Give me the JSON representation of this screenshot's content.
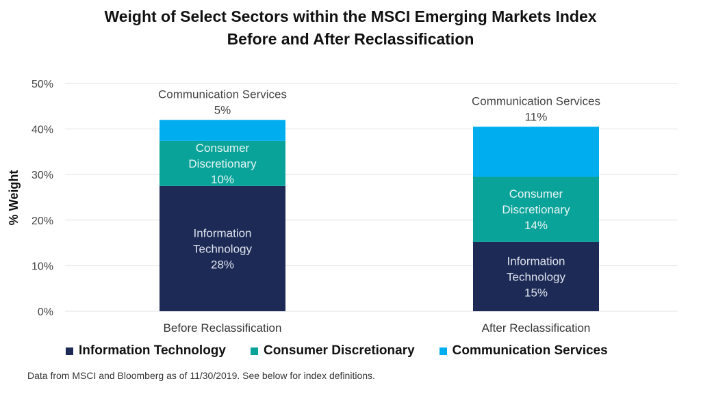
{
  "title_line1": "Weight of Select Sectors within the MSCI Emerging Markets Index",
  "title_line2": "Before and After Reclassification",
  "footer": "Data from MSCI and Bloomberg as of 11/30/2019. See below for index definitions.",
  "chart_data": {
    "type": "bar",
    "stacked": true,
    "ylabel": "% Weight",
    "ylim": [
      0,
      50
    ],
    "yticks": [
      "0%",
      "10%",
      "20%",
      "30%",
      "40%",
      "50%"
    ],
    "grid": true,
    "legend_position": "bottom",
    "categories": [
      "Before Reclassification",
      "After Reclassification"
    ],
    "series": [
      {
        "name": "Information Technology",
        "color": "#1c2a55",
        "text_color": "#dfe3ee",
        "values": [
          27.5,
          15.2
        ],
        "data_labels": [
          "28%",
          "15%"
        ],
        "label_lines": [
          [
            "Information",
            "Technology"
          ],
          [
            "Information",
            "Technology"
          ]
        ]
      },
      {
        "name": "Consumer Discretionary",
        "color": "#0aa39a",
        "text_color": "#e6f5f3",
        "values": [
          9.9,
          14.3
        ],
        "data_labels": [
          "10%",
          "14%"
        ],
        "label_lines": [
          [
            "Consumer",
            "Discretionary"
          ],
          [
            "Consumer",
            "Discretionary"
          ]
        ]
      },
      {
        "name": "Communication Services",
        "color": "#00aeef",
        "text_color": "#444444",
        "values": [
          4.6,
          11.0
        ],
        "data_labels": [
          "5%",
          "11%"
        ],
        "label_lines": [
          [
            "Communication Services"
          ],
          [
            "Communication Services"
          ]
        ]
      }
    ]
  }
}
